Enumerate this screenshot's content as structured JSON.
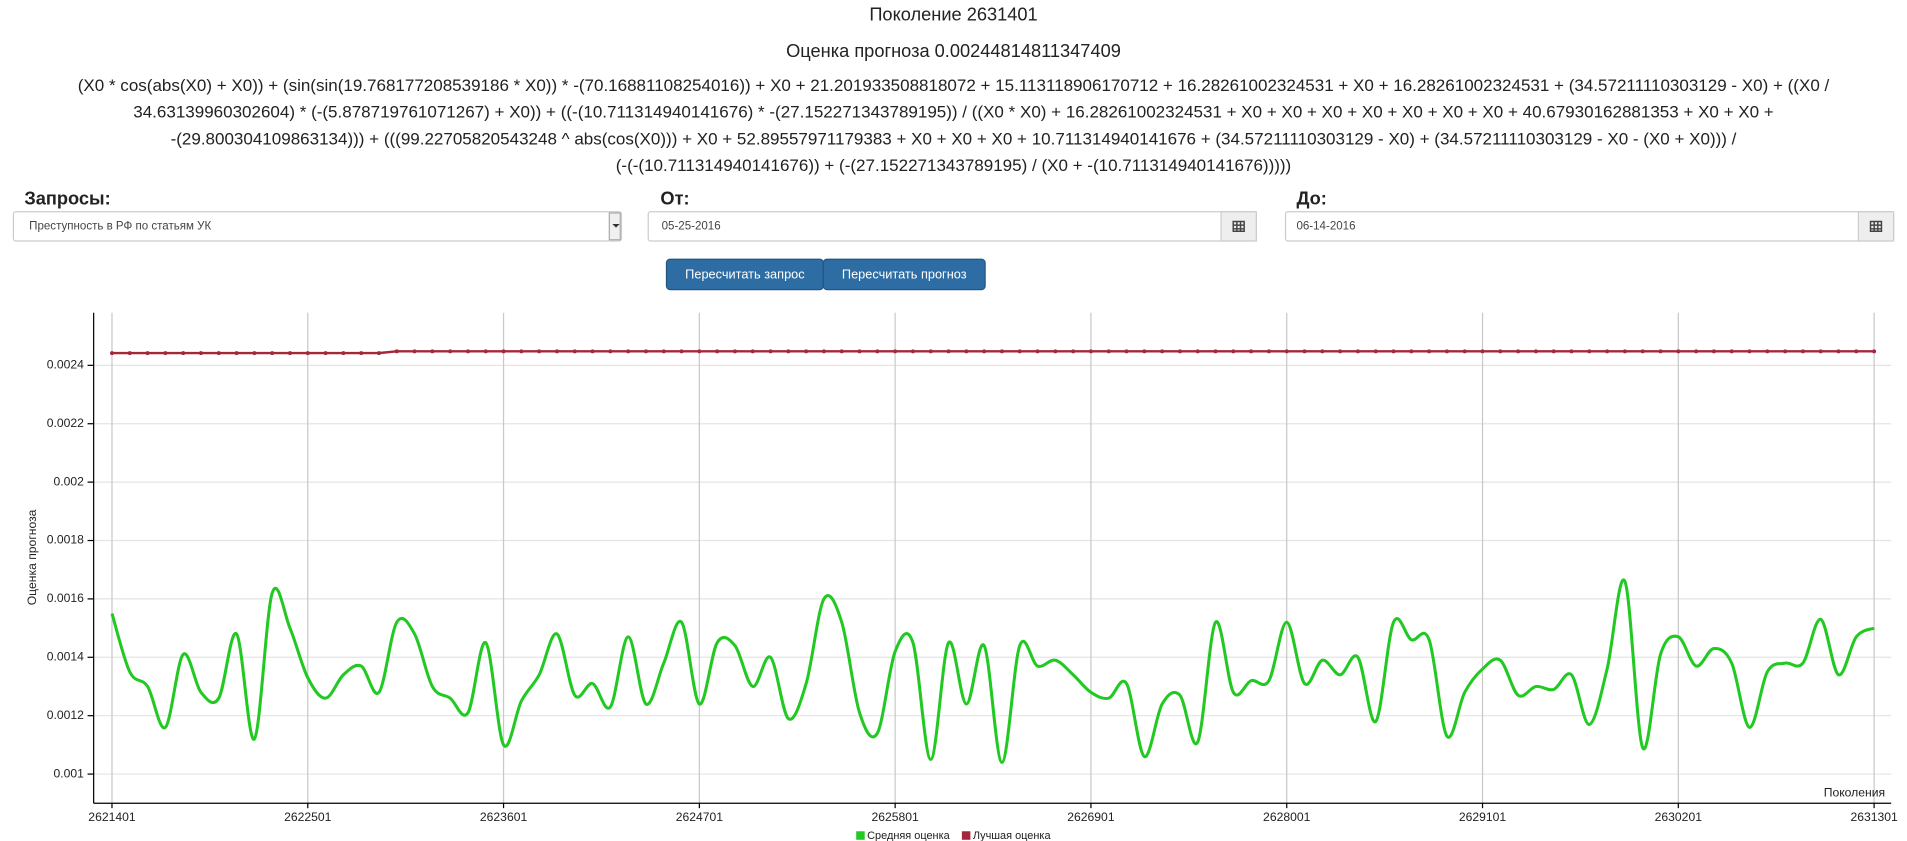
{
  "header": {
    "title": "Поколение 2631401",
    "score": "Оценка прогноза 0.00244814811347409"
  },
  "formula": {
    "lines": [
      "(X0 * cos(abs(X0) + X0)) + (sin(sin(19.768177208539186 * X0)) * -(70.16881108254016)) + X0 + 21.201933508818072 + 15.113118906170712 + 16.28261002324531 + X0 + 16.28261002324531 + (34.57211110303129 - X0) + ((X0 /",
      "34.63139960302604) * (-(5.878719761071267) + X0)) + ((-(10.711314940141676) * -(27.152271343789195)) / ((X0 * X0) + 16.28261002324531 + X0 + X0 + X0 + X0 + X0 + X0 + X0 + 40.67930162881353 + X0 + X0 +",
      "-(29.800304109863134))) + (((99.22705820543248 ^ abs(cos(X0))) + X0 + 52.89557971179383 + X0 + X0 + X0 + 10.711314940141676 + (34.57211110303129 - X0) + (34.57211110303129 - X0 - (X0 + X0))) /",
      "(-(-(10.711314940141676)) + (-(27.152271343789195) / (X0 + -(10.711314940141676)))))"
    ]
  },
  "form": {
    "queries_label": "Запросы:",
    "query_value": "Преступность в РФ по статьям УК",
    "from_label": "От:",
    "from_value": "05-25-2016",
    "to_label": "До:",
    "to_value": "06-14-2016"
  },
  "buttons": [
    "Пересчитать запрос",
    "Пересчитать прогноз"
  ],
  "chart_data": {
    "type": "line",
    "y_label": "Оценка прогноза",
    "x_label": "Поколения",
    "x": [
      2621401,
      2621501,
      2621601,
      2621701,
      2621801,
      2621901,
      2622001,
      2622101,
      2622201,
      2622301,
      2622401,
      2622501,
      2622601,
      2622701,
      2622801,
      2622901,
      2623001,
      2623101,
      2623201,
      2623301,
      2623401,
      2623501,
      2623601,
      2623701,
      2623801,
      2623901,
      2624001,
      2624101,
      2624201,
      2624301,
      2624401,
      2624501,
      2624601,
      2624701,
      2624801,
      2624901,
      2625001,
      2625101,
      2625201,
      2625301,
      2625401,
      2625501,
      2625601,
      2625701,
      2625801,
      2625901,
      2626001,
      2626101,
      2626201,
      2626301,
      2626401,
      2626501,
      2626601,
      2626701,
      2626801,
      2626901,
      2627001,
      2627101,
      2627201,
      2627301,
      2627401,
      2627501,
      2627601,
      2627701,
      2627801,
      2627901,
      2628001,
      2628101,
      2628201,
      2628301,
      2628401,
      2628501,
      2628601,
      2628701,
      2628801,
      2628901,
      2629001,
      2629101,
      2629201,
      2629301,
      2629401,
      2629501,
      2629601,
      2629701,
      2629801,
      2629901,
      2630001,
      2630101,
      2630201,
      2630301,
      2630401,
      2630501,
      2630601,
      2630701,
      2630801,
      2630901,
      2631001,
      2631101,
      2631201,
      2631301
    ],
    "series": [
      {
        "name": "Средняя оценка",
        "color": "#22c922",
        "smooth": true,
        "values": [
          0.00155,
          0.00135,
          0.0013,
          0.00116,
          0.00141,
          0.00128,
          0.00126,
          0.00148,
          0.00112,
          0.00162,
          0.0015,
          0.00133,
          0.00126,
          0.00134,
          0.00137,
          0.00128,
          0.00152,
          0.00148,
          0.0013,
          0.00126,
          0.00121,
          0.00145,
          0.0011,
          0.00125,
          0.00134,
          0.00148,
          0.00127,
          0.00131,
          0.00123,
          0.00147,
          0.00124,
          0.00138,
          0.00152,
          0.00124,
          0.00145,
          0.00144,
          0.0013,
          0.0014,
          0.00119,
          0.00131,
          0.0016,
          0.00152,
          0.00121,
          0.00114,
          0.00142,
          0.00145,
          0.00105,
          0.00145,
          0.00124,
          0.00144,
          0.00104,
          0.00144,
          0.00137,
          0.00139,
          0.00134,
          0.00128,
          0.00126,
          0.00131,
          0.00106,
          0.00124,
          0.00127,
          0.00111,
          0.00152,
          0.00128,
          0.00132,
          0.00132,
          0.00152,
          0.00131,
          0.00139,
          0.00134,
          0.0014,
          0.00118,
          0.00152,
          0.00146,
          0.00146,
          0.00113,
          0.00128,
          0.00136,
          0.00139,
          0.00127,
          0.0013,
          0.00129,
          0.00134,
          0.00117,
          0.00136,
          0.00166,
          0.00109,
          0.00141,
          0.00147,
          0.00137,
          0.00143,
          0.00138,
          0.00116,
          0.00135,
          0.00138,
          0.00138,
          0.00153,
          0.00134,
          0.00147,
          0.0015
        ]
      },
      {
        "name": "Лучшая оценка",
        "color": "#a4283c",
        "markers": true,
        "values": [
          0.002442,
          0.002442,
          0.002442,
          0.002442,
          0.002442,
          0.002442,
          0.002442,
          0.002442,
          0.002442,
          0.002442,
          0.002442,
          0.002442,
          0.002442,
          0.002442,
          0.002442,
          0.002442,
          0.002448,
          0.002448,
          0.002448,
          0.002448,
          0.002448,
          0.002448,
          0.002448,
          0.002448,
          0.002448,
          0.002448,
          0.002448,
          0.002448,
          0.002448,
          0.002448,
          0.002448,
          0.002448,
          0.002448,
          0.002448,
          0.002448,
          0.002448,
          0.002448,
          0.002448,
          0.002448,
          0.002448,
          0.002448,
          0.002448,
          0.002448,
          0.002448,
          0.002448,
          0.002448,
          0.002448,
          0.002448,
          0.002448,
          0.002448,
          0.002448,
          0.002448,
          0.002448,
          0.002448,
          0.002448,
          0.002448,
          0.002448,
          0.002448,
          0.002448,
          0.002448,
          0.002448,
          0.002448,
          0.002448,
          0.002448,
          0.002448,
          0.002448,
          0.002448,
          0.002448,
          0.002448,
          0.002448,
          0.002448,
          0.002448,
          0.002448,
          0.002448,
          0.002448,
          0.002448,
          0.002448,
          0.002448,
          0.002448,
          0.002448,
          0.002448,
          0.002448,
          0.002448,
          0.002448,
          0.002448,
          0.002448,
          0.002448,
          0.002448,
          0.002448,
          0.002448,
          0.002448,
          0.002448,
          0.002448,
          0.002448,
          0.002448,
          0.002448,
          0.002448,
          0.002448,
          0.002448,
          0.002448
        ]
      }
    ],
    "xlim": [
      2621298,
      2631397
    ],
    "ylim": [
      0.0009,
      0.00258
    ],
    "xticks": [
      2621401,
      2622501,
      2623601,
      2624701,
      2625801,
      2626901,
      2628001,
      2629101,
      2630201,
      2631301
    ],
    "yticks": [
      0.001,
      0.0012,
      0.0014,
      0.0016,
      0.0018,
      0.002,
      0.0022,
      0.0024
    ],
    "grid": true
  }
}
